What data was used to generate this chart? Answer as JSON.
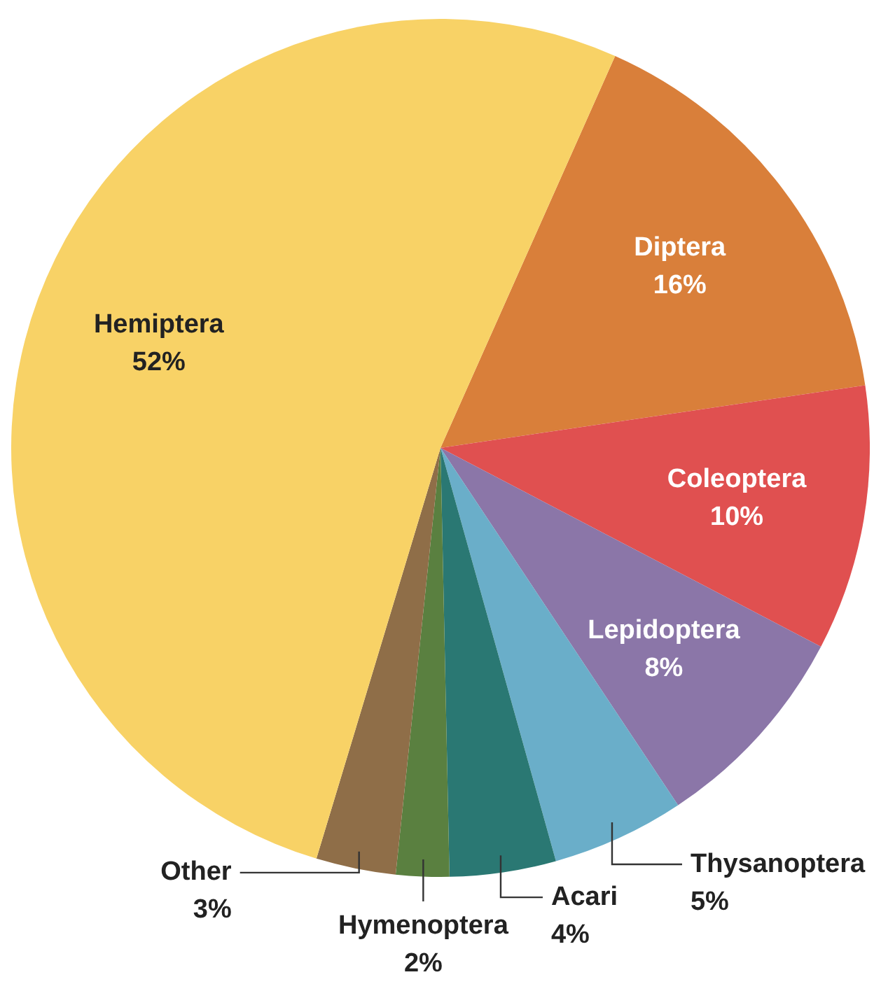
{
  "chart_data": {
    "type": "pie",
    "categories": [
      "Diptera",
      "Coleoptera",
      "Lepidoptera",
      "Thysanoptera",
      "Acari",
      "Hymenoptera",
      "Other",
      "Hemiptera"
    ],
    "values": [
      16,
      10,
      8,
      5,
      4,
      2,
      3,
      52
    ],
    "colors": [
      "#d97f3a",
      "#e05050",
      "#8b76a8",
      "#6aaec9",
      "#2a7873",
      "#5a8040",
      "#8f6e48",
      "#f8d266"
    ],
    "value_labels": [
      "16%",
      "10%",
      "8%",
      "5%",
      "4%",
      "2%",
      "3%",
      "52%"
    ],
    "legend": false
  }
}
